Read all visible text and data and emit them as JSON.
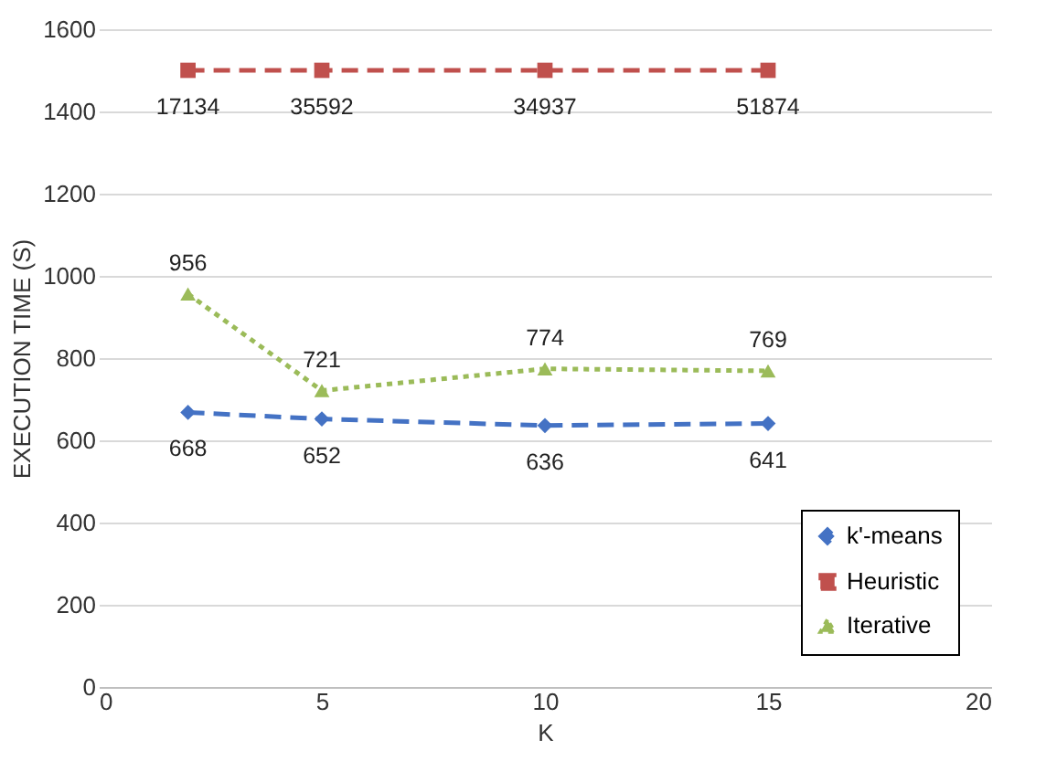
{
  "chart_data": {
    "type": "line",
    "xlabel": "K",
    "ylabel": "EXECUTION TIME (S)",
    "x": [
      2,
      5,
      10,
      15
    ],
    "series": [
      {
        "name": "k'-means",
        "color": "#4472c4",
        "marker": "diamond",
        "line_style": "dashed",
        "values": [
          668,
          652,
          636,
          641
        ]
      },
      {
        "name": "Heuristic",
        "color": "#c0504d",
        "marker": "square",
        "line_style": "dashed",
        "values": [
          1500,
          1500,
          1500,
          1500
        ],
        "value_labels": [
          null,
          null,
          null,
          null
        ]
      },
      {
        "name": "Iterative",
        "color": "#9bbb59",
        "marker": "triangle",
        "line_style": "dotted",
        "values": [
          956,
          721,
          774,
          769
        ]
      }
    ],
    "xlim": [
      0,
      20
    ],
    "xticks": [
      0,
      5,
      10,
      15,
      20
    ],
    "ylim": [
      0,
      1600
    ],
    "yticks": [
      0,
      200,
      400,
      600,
      800,
      1000,
      1200,
      1400,
      1600
    ],
    "annotations": [
      {
        "text": "17134",
        "x": 2,
        "y": 1500
      },
      {
        "text": "35592",
        "x": 5,
        "y": 1500
      },
      {
        "text": "34937",
        "x": 10,
        "y": 1500
      },
      {
        "text": "51874",
        "x": 15,
        "y": 1500
      }
    ],
    "grid": "y",
    "legend": "bottom right",
    "data_labels": true
  }
}
